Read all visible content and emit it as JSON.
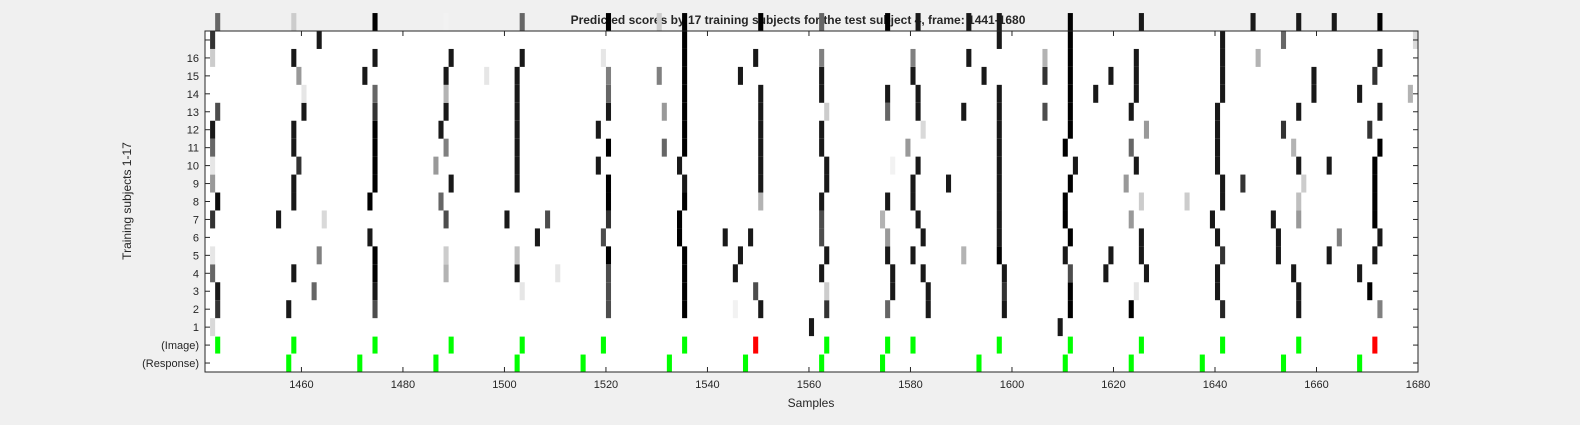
{
  "chart_data": {
    "type": "heatmap",
    "title": "Predicted scores by 17 training subjects for the test subject 4, frame: 1441-1680",
    "xlabel": "Samples",
    "ylabel": "Training subjects 1-17",
    "xlim": [
      1441,
      1680
    ],
    "xticks": [
      1460,
      1480,
      1500,
      1520,
      1540,
      1560,
      1580,
      1600,
      1620,
      1640,
      1660,
      1680
    ],
    "ylabels": [
      "(Response)",
      "(Image)",
      "1",
      "2",
      "3",
      "4",
      "5",
      "6",
      "7",
      "8",
      "9",
      "10",
      "11",
      "12",
      "13",
      "14",
      "15",
      "16",
      ""
    ],
    "colors": {
      "background": "#f0f0f0",
      "cell": "#000000",
      "image_marker": "#00ff00",
      "error_marker": "#ff0000"
    },
    "image_onsets": [
      1443,
      1458,
      1474,
      1489,
      1503,
      1519,
      1535,
      1549,
      1563,
      1575,
      1580,
      1597,
      1611,
      1625,
      1641,
      1656,
      1671
    ],
    "image_colors": [
      "green",
      "green",
      "green",
      "green",
      "green",
      "green",
      "green",
      "red",
      "green",
      "green",
      "green",
      "green",
      "green",
      "green",
      "green",
      "green",
      "red"
    ],
    "response_onsets": [
      1457,
      1471,
      1486,
      1502,
      1515,
      1532,
      1547,
      1562,
      1574,
      1593,
      1610,
      1623,
      1637,
      1653,
      1668
    ],
    "rows": [
      {
        "cells": [
          [
            1442,
            0.15
          ],
          [
            1560,
            0.9
          ],
          [
            1609,
            0.9
          ]
        ]
      },
      {
        "cells": [
          [
            1443,
            0.8
          ],
          [
            1457,
            0.9
          ],
          [
            1474,
            0.7
          ],
          [
            1520,
            0.7
          ],
          [
            1535,
            1
          ],
          [
            1545,
            0.05
          ],
          [
            1550,
            0.9
          ],
          [
            1563,
            0.8
          ],
          [
            1575,
            0.6
          ],
          [
            1583,
            0.9
          ],
          [
            1598,
            0.9
          ],
          [
            1611,
            1
          ],
          [
            1623,
            1
          ],
          [
            1641,
            0.85
          ],
          [
            1656,
            0.9
          ],
          [
            1672,
            0.5
          ]
        ]
      },
      {
        "cells": [
          [
            1443,
            0.9
          ],
          [
            1462,
            0.6
          ],
          [
            1474,
            0.9
          ],
          [
            1503,
            0.1
          ],
          [
            1520,
            0.7
          ],
          [
            1535,
            1
          ],
          [
            1549,
            0.7
          ],
          [
            1563,
            0.2
          ],
          [
            1576,
            0.9
          ],
          [
            1583,
            0.9
          ],
          [
            1598,
            0.8
          ],
          [
            1611,
            1
          ],
          [
            1624,
            0.1
          ],
          [
            1640,
            0.9
          ],
          [
            1656,
            0.9
          ],
          [
            1670,
            1
          ]
        ]
      },
      {
        "cells": [
          [
            1442,
            0.6
          ],
          [
            1458,
            0.9
          ],
          [
            1474,
            1
          ],
          [
            1488,
            0.3
          ],
          [
            1502,
            0.9
          ],
          [
            1510,
            0.1
          ],
          [
            1520,
            0.7
          ],
          [
            1535,
            1
          ],
          [
            1545,
            0.9
          ],
          [
            1562,
            0.9
          ],
          [
            1576,
            0.9
          ],
          [
            1582,
            0.9
          ],
          [
            1598,
            0.9
          ],
          [
            1611,
            0.7
          ],
          [
            1618,
            0.9
          ],
          [
            1626,
            0.9
          ],
          [
            1640,
            0.9
          ],
          [
            1655,
            0.9
          ],
          [
            1668,
            0.9
          ]
        ]
      },
      {
        "cells": [
          [
            1442,
            0.1
          ],
          [
            1463,
            0.5
          ],
          [
            1474,
            1
          ],
          [
            1488,
            0.2
          ],
          [
            1502,
            0.25
          ],
          [
            1520,
            1
          ],
          [
            1535,
            1
          ],
          [
            1546,
            0.9
          ],
          [
            1563,
            0.9
          ],
          [
            1575,
            0.9
          ],
          [
            1580,
            0.9
          ],
          [
            1590,
            0.3
          ],
          [
            1597,
            1
          ],
          [
            1610,
            0.9
          ],
          [
            1619,
            0.9
          ],
          [
            1625,
            0.9
          ],
          [
            1641,
            0.8
          ],
          [
            1652,
            0.9
          ],
          [
            1662,
            0.9
          ],
          [
            1671,
            0.9
          ]
        ]
      },
      {
        "cells": [
          [
            1473,
            0.9
          ],
          [
            1506,
            0.9
          ],
          [
            1519,
            0.7
          ],
          [
            1534,
            1
          ],
          [
            1543,
            0.9
          ],
          [
            1548,
            0.9
          ],
          [
            1562,
            0.7
          ],
          [
            1575,
            0.4
          ],
          [
            1582,
            0.9
          ],
          [
            1597,
            0.9
          ],
          [
            1611,
            1
          ],
          [
            1625,
            0.9
          ],
          [
            1640,
            0.9
          ],
          [
            1652,
            0.9
          ],
          [
            1664,
            0.5
          ],
          [
            1672,
            0.9
          ]
        ]
      },
      {
        "cells": [
          [
            1442,
            0.8
          ],
          [
            1455,
            0.9
          ],
          [
            1464,
            0.15
          ],
          [
            1488,
            0.7
          ],
          [
            1500,
            0.9
          ],
          [
            1508,
            0.7
          ],
          [
            1520,
            0.8
          ],
          [
            1534,
            1
          ],
          [
            1562,
            0.7
          ],
          [
            1574,
            0.3
          ],
          [
            1581,
            0.9
          ],
          [
            1597,
            0.9
          ],
          [
            1610,
            1
          ],
          [
            1623,
            0.4
          ],
          [
            1639,
            0.9
          ],
          [
            1651,
            0.9
          ],
          [
            1656,
            0.4
          ],
          [
            1671,
            1
          ]
        ]
      },
      {
        "cells": [
          [
            1443,
            0.95
          ],
          [
            1458,
            0.9
          ],
          [
            1473,
            1
          ],
          [
            1487,
            0.6
          ],
          [
            1520,
            1
          ],
          [
            1535,
            1
          ],
          [
            1550,
            0.3
          ],
          [
            1562,
            0.9
          ],
          [
            1575,
            0.9
          ],
          [
            1580,
            0.9
          ],
          [
            1597,
            0.9
          ],
          [
            1610,
            1
          ],
          [
            1625,
            0.2
          ],
          [
            1634,
            0.2
          ],
          [
            1641,
            0.9
          ],
          [
            1656,
            0.25
          ],
          [
            1671,
            1
          ]
        ]
      },
      {
        "cells": [
          [
            1442,
            0.4
          ],
          [
            1458,
            0.9
          ],
          [
            1474,
            1
          ],
          [
            1489,
            0.9
          ],
          [
            1502,
            0.9
          ],
          [
            1520,
            1
          ],
          [
            1535,
            0.9
          ],
          [
            1550,
            0.9
          ],
          [
            1563,
            0.9
          ],
          [
            1580,
            0.9
          ],
          [
            1587,
            0.9
          ],
          [
            1597,
            0.9
          ],
          [
            1611,
            1
          ],
          [
            1622,
            0.4
          ],
          [
            1641,
            0.9
          ],
          [
            1645,
            0.8
          ],
          [
            1657,
            0.2
          ],
          [
            1671,
            1
          ]
        ]
      },
      {
        "cells": [
          [
            1442,
            0.1
          ],
          [
            1459,
            0.8
          ],
          [
            1474,
            1
          ],
          [
            1486,
            0.4
          ],
          [
            1502,
            0.9
          ],
          [
            1518,
            0.9
          ],
          [
            1534,
            0.9
          ],
          [
            1550,
            0.9
          ],
          [
            1563,
            0.9
          ],
          [
            1576,
            0.05
          ],
          [
            1581,
            0.9
          ],
          [
            1597,
            0.9
          ],
          [
            1612,
            0.9
          ],
          [
            1624,
            0.9
          ],
          [
            1640,
            0.9
          ],
          [
            1656,
            0.9
          ],
          [
            1662,
            0.9
          ],
          [
            1671,
            1
          ]
        ]
      },
      {
        "cells": [
          [
            1442,
            0.6
          ],
          [
            1458,
            0.9
          ],
          [
            1474,
            1
          ],
          [
            1488,
            0.5
          ],
          [
            1502,
            0.9
          ],
          [
            1520,
            1
          ],
          [
            1531,
            0.6
          ],
          [
            1535,
            1
          ],
          [
            1550,
            0.9
          ],
          [
            1562,
            0.9
          ],
          [
            1579,
            0.4
          ],
          [
            1597,
            0.9
          ],
          [
            1610,
            1
          ],
          [
            1623,
            0.6
          ],
          [
            1640,
            0.9
          ],
          [
            1655,
            0.3
          ],
          [
            1672,
            1
          ]
        ]
      },
      {
        "cells": [
          [
            1442,
            0.9
          ],
          [
            1458,
            0.9
          ],
          [
            1474,
            1
          ],
          [
            1487,
            0.9
          ],
          [
            1502,
            0.9
          ],
          [
            1518,
            0.9
          ],
          [
            1535,
            1
          ],
          [
            1550,
            0.9
          ],
          [
            1562,
            0.9
          ],
          [
            1582,
            0.15
          ],
          [
            1597,
            0.9
          ],
          [
            1611,
            1
          ],
          [
            1626,
            0.4
          ],
          [
            1640,
            0.9
          ],
          [
            1653,
            0.8
          ],
          [
            1670,
            0.8
          ]
        ]
      },
      {
        "cells": [
          [
            1443,
            0.7
          ],
          [
            1460,
            0.9
          ],
          [
            1474,
            0.8
          ],
          [
            1488,
            0.9
          ],
          [
            1502,
            0.9
          ],
          [
            1520,
            0.9
          ],
          [
            1531,
            0.4
          ],
          [
            1535,
            1
          ],
          [
            1550,
            0.9
          ],
          [
            1563,
            0.2
          ],
          [
            1575,
            0.6
          ],
          [
            1581,
            0.9
          ],
          [
            1590,
            0.9
          ],
          [
            1597,
            0.9
          ],
          [
            1606,
            0.7
          ],
          [
            1611,
            1
          ],
          [
            1623,
            0.9
          ],
          [
            1640,
            0.9
          ],
          [
            1656,
            0.9
          ],
          [
            1672,
            0.9
          ]
        ]
      },
      {
        "cells": [
          [
            1460,
            0.1
          ],
          [
            1474,
            0.6
          ],
          [
            1488,
            0.3
          ],
          [
            1502,
            0.9
          ],
          [
            1520,
            0.6
          ],
          [
            1535,
            1
          ],
          [
            1550,
            0.9
          ],
          [
            1562,
            0.9
          ],
          [
            1575,
            0.9
          ],
          [
            1581,
            0.9
          ],
          [
            1597,
            0.9
          ],
          [
            1611,
            1
          ],
          [
            1616,
            0.9
          ],
          [
            1624,
            0.9
          ],
          [
            1641,
            0.9
          ],
          [
            1659,
            0.9
          ],
          [
            1668,
            0.9
          ],
          [
            1678,
            0.3
          ]
        ]
      },
      {
        "cells": [
          [
            1459,
            0.4
          ],
          [
            1472,
            0.9
          ],
          [
            1488,
            0.9
          ],
          [
            1496,
            0.1
          ],
          [
            1502,
            0.9
          ],
          [
            1520,
            0.5
          ],
          [
            1530,
            0.5
          ],
          [
            1535,
            1
          ],
          [
            1546,
            0.9
          ],
          [
            1562,
            0.9
          ],
          [
            1580,
            0.9
          ],
          [
            1594,
            0.9
          ],
          [
            1606,
            0.8
          ],
          [
            1611,
            1
          ],
          [
            1619,
            0.9
          ],
          [
            1624,
            0.9
          ],
          [
            1641,
            0.9
          ],
          [
            1659,
            0.9
          ],
          [
            1671,
            0.8
          ]
        ]
      },
      {
        "cells": [
          [
            1442,
            0.2
          ],
          [
            1458,
            0.9
          ],
          [
            1474,
            0.9
          ],
          [
            1489,
            0.9
          ],
          [
            1503,
            0.9
          ],
          [
            1519,
            0.1
          ],
          [
            1535,
            1
          ],
          [
            1549,
            0.9
          ],
          [
            1562,
            0.5
          ],
          [
            1580,
            0.5
          ],
          [
            1591,
            0.9
          ],
          [
            1606,
            0.3
          ],
          [
            1611,
            1
          ],
          [
            1624,
            0.9
          ],
          [
            1641,
            0.9
          ],
          [
            1648,
            0.3
          ],
          [
            1672,
            0.9
          ]
        ]
      },
      {
        "cells": [
          [
            1442,
            0.8
          ],
          [
            1463,
            0.9
          ],
          [
            1535,
            1
          ],
          [
            1597,
            0.9
          ],
          [
            1611,
            1
          ],
          [
            1641,
            0.9
          ],
          [
            1653,
            0.6
          ],
          [
            1679,
            0.15
          ]
        ]
      },
      {
        "cells": [
          [
            1443,
            0.6
          ],
          [
            1458,
            0.2
          ],
          [
            1474,
            1
          ],
          [
            1488,
            0.05
          ],
          [
            1503,
            0.6
          ],
          [
            1520,
            1
          ],
          [
            1530,
            0.2
          ],
          [
            1535,
            1
          ],
          [
            1550,
            1
          ],
          [
            1562,
            0.6
          ],
          [
            1575,
            1
          ],
          [
            1581,
            0.9
          ],
          [
            1591,
            0.9
          ],
          [
            1597,
            0.9
          ],
          [
            1611,
            1
          ],
          [
            1625,
            0.9
          ],
          [
            1647,
            0.9
          ],
          [
            1656,
            0.9
          ],
          [
            1663,
            0.9
          ],
          [
            1672,
            1
          ]
        ]
      }
    ]
  }
}
